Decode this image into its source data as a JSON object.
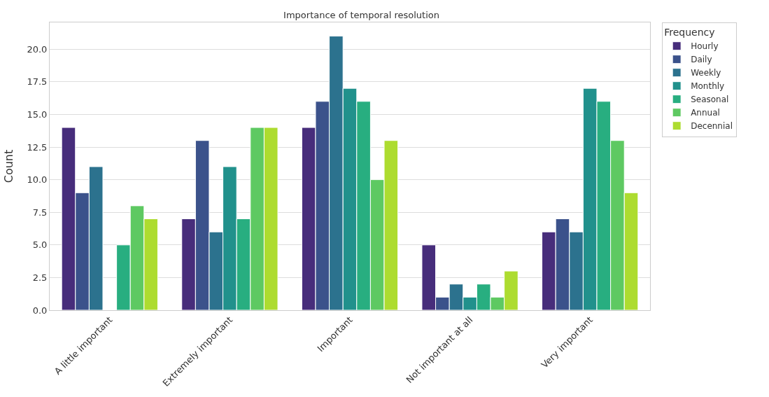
{
  "chart_data": {
    "type": "bar",
    "title": "Importance of temporal resolution",
    "ylabel": "Count",
    "legend_title": "Frequency",
    "categories": [
      "A little important",
      "Extremely important",
      "Important",
      "Not important at all",
      "Very important"
    ],
    "series": [
      {
        "name": "Hourly",
        "color": "#472d7b",
        "values": [
          14,
          7,
          14,
          5,
          6
        ]
      },
      {
        "name": "Daily",
        "color": "#3b528b",
        "values": [
          9,
          13,
          16,
          1,
          7
        ]
      },
      {
        "name": "Weekly",
        "color": "#2c728e",
        "values": [
          11,
          6,
          21,
          2,
          6
        ]
      },
      {
        "name": "Monthly",
        "color": "#21918c",
        "values": [
          null,
          11,
          17,
          1,
          17
        ]
      },
      {
        "name": "Seasonal",
        "color": "#28ae80",
        "values": [
          5,
          7,
          16,
          2,
          16
        ]
      },
      {
        "name": "Annual",
        "color": "#5ec962",
        "values": [
          8,
          14,
          10,
          1,
          13
        ]
      },
      {
        "name": "Decennial",
        "color": "#addc30",
        "values": [
          7,
          14,
          13,
          3,
          9
        ]
      }
    ],
    "ylim": [
      0,
      22.05
    ],
    "yticks": [
      {
        "value": 0,
        "label": "0.0"
      },
      {
        "value": 2.5,
        "label": "2.5"
      },
      {
        "value": 5,
        "label": "5.0"
      },
      {
        "value": 7.5,
        "label": "7.5"
      },
      {
        "value": 10,
        "label": "10.0"
      },
      {
        "value": 12.5,
        "label": "12.5"
      },
      {
        "value": 15,
        "label": "15.0"
      },
      {
        "value": 17.5,
        "label": "17.5"
      },
      {
        "value": 20,
        "label": "20.0"
      }
    ],
    "grid": "y",
    "legend": "top right"
  }
}
